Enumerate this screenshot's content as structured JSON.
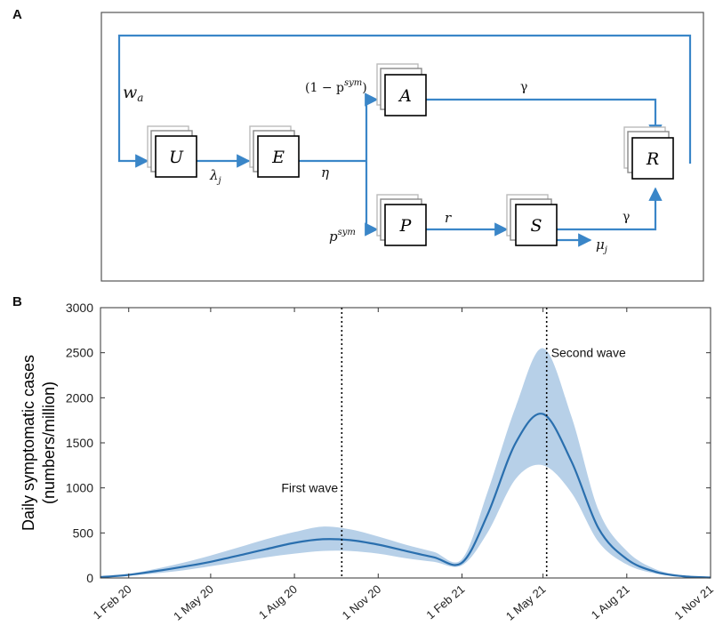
{
  "figure": {
    "panel_a_label": "A",
    "panel_b_label": "B"
  },
  "diagram": {
    "compartments": [
      {
        "id": "U",
        "label": "U"
      },
      {
        "id": "E",
        "label": "E"
      },
      {
        "id": "A",
        "label": "A"
      },
      {
        "id": "P",
        "label": "P"
      },
      {
        "id": "S",
        "label": "S"
      },
      {
        "id": "R",
        "label": "R"
      }
    ],
    "transitions": {
      "waning": "w",
      "waning_sub": "a",
      "infection": "λ",
      "infection_sub": "j",
      "incubation": "η",
      "asym_fraction": "(1 − p",
      "asym_fraction_sup": "sym",
      "asym_fraction_close": ")",
      "sym_fraction": "p",
      "sym_fraction_sup": "sym",
      "progression": "r",
      "recovery_a": "γ",
      "recovery_s": "γ",
      "mortality": "μ",
      "mortality_sub": "j"
    },
    "colors": {
      "arrow": "#3a86c8",
      "box": "#000000",
      "box_shadow": "#9a9a9a"
    }
  },
  "chart_data": {
    "type": "line",
    "title": "",
    "xlabel": "",
    "ylabel_line1": "Daily symptomatic cases",
    "ylabel_line2": "(numbers/million)",
    "ylim": [
      0,
      3000
    ],
    "xlim": [
      "2020-01-01",
      "2021-11-01"
    ],
    "yticks": [
      0,
      500,
      1000,
      1500,
      2000,
      2500,
      3000
    ],
    "xticks": [
      "1 Feb 20",
      "1 May 20",
      "1 Aug 20",
      "1 Nov 20",
      "1 Feb 21",
      "1 May 21",
      "1 Aug 21",
      "1 Nov 21"
    ],
    "xtick_dates": [
      "2020-02-01",
      "2020-05-01",
      "2020-08-01",
      "2020-11-01",
      "2021-02-01",
      "2021-05-01",
      "2021-08-01",
      "2021-11-01"
    ],
    "series": [
      {
        "dates": [
          "2020-01-01",
          "2020-02-01",
          "2020-03-01",
          "2020-04-01",
          "2020-05-01",
          "2020-06-01",
          "2020-07-01",
          "2020-08-01",
          "2020-09-01",
          "2020-10-01",
          "2020-11-01",
          "2020-12-01",
          "2021-01-01",
          "2021-02-01",
          "2021-03-01",
          "2021-04-01",
          "2021-05-01",
          "2021-06-01",
          "2021-07-01",
          "2021-08-01",
          "2021-09-01",
          "2021-10-01",
          "2021-11-01"
        ],
        "median": [
          10,
          35,
          75,
          125,
          180,
          250,
          320,
          390,
          430,
          420,
          370,
          300,
          230,
          170,
          700,
          1500,
          1820,
          1300,
          550,
          210,
          70,
          20,
          5
        ],
        "lower": [
          8,
          25,
          50,
          85,
          130,
          180,
          230,
          270,
          300,
          300,
          270,
          220,
          180,
          140,
          500,
          1100,
          1250,
          950,
          400,
          150,
          50,
          15,
          3
        ],
        "upper": [
          12,
          45,
          100,
          170,
          250,
          340,
          430,
          510,
          570,
          540,
          460,
          370,
          290,
          210,
          950,
          1900,
          2550,
          1800,
          750,
          300,
          100,
          30,
          8
        ]
      }
    ],
    "colors": {
      "line": "#2a6fae",
      "band": "#b7d0e8"
    },
    "annotations": [
      {
        "text": "First wave",
        "line_date": "2020-09-22",
        "text_y": 1000
      },
      {
        "text": "Second wave",
        "line_date": "2021-05-05",
        "text_y": 2500
      }
    ]
  }
}
